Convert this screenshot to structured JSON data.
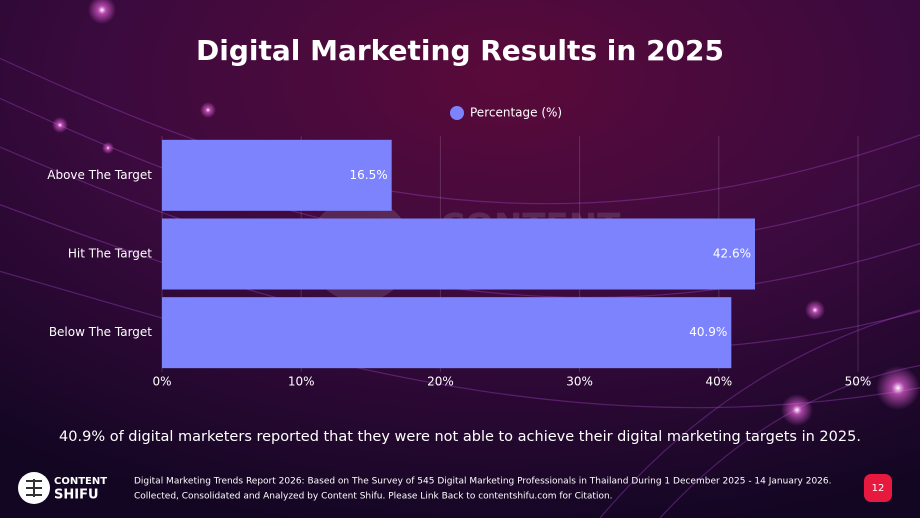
{
  "chart_data": {
    "type": "hbar",
    "title": "Digital Marketing Results in 2025",
    "categories": [
      "Above The Target",
      "Hit The Target",
      "Below The Target"
    ],
    "series": [
      {
        "name": "Percentage (%)",
        "color": "#7c83fd",
        "values": [
          16.5,
          42.6,
          40.9
        ],
        "value_labels": [
          "16.5%",
          "42.6%",
          "40.9%"
        ]
      }
    ],
    "xlim": [
      0,
      50
    ],
    "xticks": [
      {
        "value": 0,
        "label": "0%"
      },
      {
        "value": 10,
        "label": "10%"
      },
      {
        "value": 20,
        "label": "20%"
      },
      {
        "value": 30,
        "label": "30%"
      },
      {
        "value": 40,
        "label": "40%"
      },
      {
        "value": 50,
        "label": "50%"
      }
    ],
    "grid": true,
    "legend": "top"
  },
  "slide": {
    "caption": "40.9% of digital marketers reported that they were not able to achieve their digital marketing targets in 2025.",
    "footer": [
      "Digital Marketing Trends Report 2026: Based on The Survey of 545 Digital Marketing Professionals in Thailand During 1 December 2025 - 14 January 2026.",
      "Collected, Consolidated and Analyzed by Content Shifu. Please Link Back to contentshifu.com for Citation."
    ],
    "logo": [
      "CONTENT",
      "SHIFU"
    ],
    "page_number": 12
  }
}
